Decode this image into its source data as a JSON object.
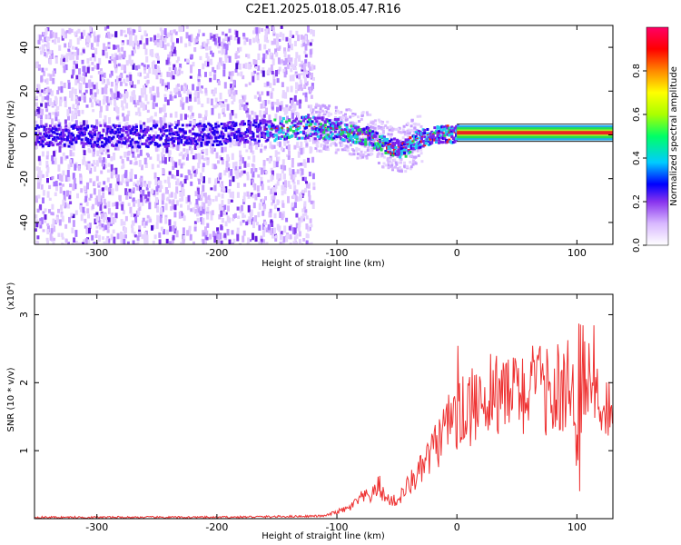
{
  "title": "C2E1.2025.018.05.47.R16",
  "colors": {
    "snr_line": "#ee3333",
    "spectrogram_base": "#7722ee",
    "ridge_green": "#22dd55",
    "ridge_cyan": "#22ccee",
    "ridge_red": "#ee2222",
    "axis": "#000000"
  },
  "chart_data": [
    {
      "type": "heatmap",
      "xlabel": "Height of straight line (km)",
      "ylabel": "Frequency (Hz)",
      "xlim": [
        -352,
        130
      ],
      "ylim": [
        -50,
        50
      ],
      "x_ticks": [
        -300,
        -200,
        -100,
        0,
        100
      ],
      "y_ticks": [
        -40,
        -20,
        0,
        20,
        40
      ],
      "colorbar": {
        "label": "Normalized spectral amplitude",
        "range": [
          0,
          1
        ],
        "ticks": [
          "0.0",
          "0.2",
          "0.4",
          "0.6",
          "0.8"
        ],
        "colormap": [
          "#ffffff",
          "#d8b8ff",
          "#8833ee",
          "#0000ff",
          "#00ccff",
          "#00ff66",
          "#aaff00",
          "#ffff00",
          "#ff8800",
          "#ff0000",
          "#ff0066"
        ]
      },
      "ridge_frequency": {
        "x": [
          -350,
          -300,
          -250,
          -200,
          -175,
          -150,
          -125,
          -100,
          -90,
          -75,
          -65,
          -55,
          -45,
          -35,
          -25,
          -15,
          -5,
          0,
          50,
          100,
          130
        ],
        "y": [
          0,
          0,
          0,
          1,
          2,
          3,
          4,
          3,
          1,
          0,
          -3,
          -5,
          -6,
          -2,
          0,
          1,
          1,
          1,
          1,
          1,
          1
        ]
      },
      "steady_signal_range_km": [
        0,
        130
      ],
      "noise_cutoff_km": -120
    },
    {
      "type": "line",
      "xlabel": "Height of straight line (km)",
      "ylabel": "SNR (10 * v/v)",
      "y_multiplier": "(x10⁴)",
      "xlim": [
        -352,
        130
      ],
      "ylim": [
        0,
        3.3
      ],
      "x_ticks": [
        -300,
        -200,
        -100,
        0,
        100
      ],
      "y_ticks": [
        1,
        2,
        3
      ],
      "series": [
        {
          "x": [
            -352,
            -300,
            -250,
            -200,
            -150,
            -110,
            -100,
            -90,
            -80,
            -70,
            -65,
            -60,
            -50,
            -40,
            -30,
            -20,
            -10,
            0,
            10,
            20,
            30,
            40,
            50,
            60,
            70,
            80,
            90,
            95,
            100,
            103,
            105,
            110,
            120,
            130
          ],
          "y": [
            0.02,
            0.02,
            0.02,
            0.02,
            0.03,
            0.04,
            0.1,
            0.15,
            0.3,
            0.35,
            0.5,
            0.3,
            0.25,
            0.5,
            0.7,
            1.0,
            1.3,
            1.5,
            1.6,
            1.8,
            1.9,
            1.8,
            1.85,
            1.9,
            1.9,
            1.85,
            1.9,
            2.0,
            1.3,
            0.4,
            2.2,
            1.9,
            1.8,
            1.7
          ]
        }
      ]
    }
  ]
}
